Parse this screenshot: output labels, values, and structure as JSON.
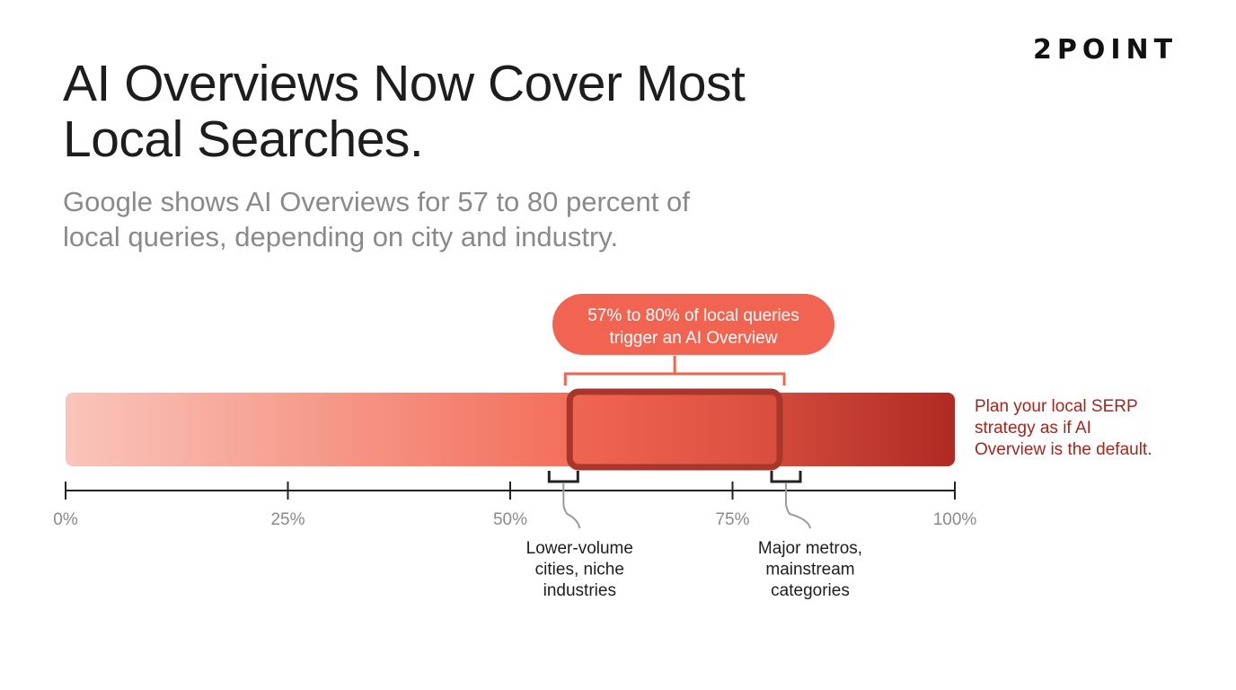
{
  "brand": {
    "logo_text": "2POINT"
  },
  "header": {
    "title_line1": "AI Overviews Now Cover Most",
    "title_line2": "Local Searches.",
    "subtitle_line1": "Google shows AI Overviews for 57 to 80 percent of",
    "subtitle_line2": "local queries, depending on city and industry."
  },
  "colors": {
    "gradient_start": "#f9c5bb",
    "gradient_mid": "#f36a56",
    "gradient_end": "#b12a22",
    "highlight_border": "#a8362b",
    "callout_fill": "#f26452",
    "callout_bracket": "#ef6650",
    "axis": "#222222",
    "note_text": "#a5261c"
  },
  "callout": {
    "line1": "57% to 80% of local queries",
    "line2": "trigger an AI Overview"
  },
  "side_note": {
    "line1": "Plan your local SERP",
    "line2": "strategy as if AI",
    "line3": "Overview is the default."
  },
  "chart_data": {
    "type": "bar",
    "axis": {
      "min": 0,
      "max": 100,
      "unit": "%"
    },
    "ticks": [
      {
        "value": 0,
        "label": "0%"
      },
      {
        "value": 25,
        "label": "25%"
      },
      {
        "value": 50,
        "label": "50%"
      },
      {
        "value": 75,
        "label": "75%"
      },
      {
        "value": 100,
        "label": "100%"
      }
    ],
    "range": {
      "low": 57,
      "high": 80
    },
    "annotations": [
      {
        "value": 57,
        "lines": [
          "Lower-volume",
          "cities, niche",
          "industries"
        ]
      },
      {
        "value": 80,
        "lines": [
          "Major metros,",
          "mainstream",
          "categories"
        ]
      }
    ]
  }
}
